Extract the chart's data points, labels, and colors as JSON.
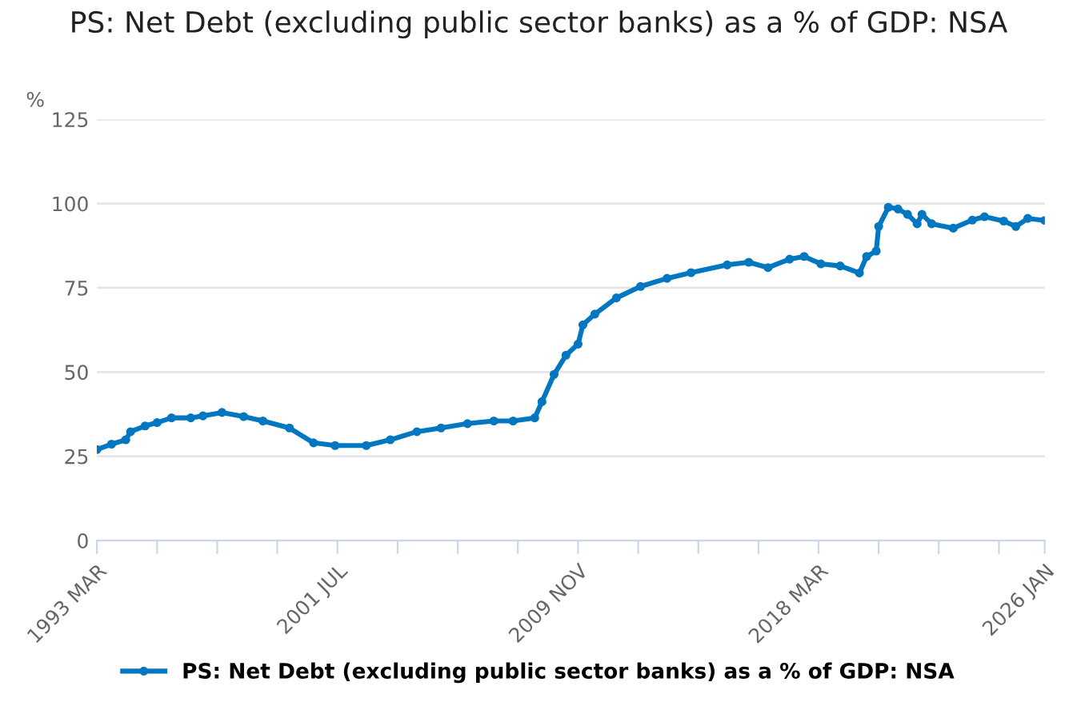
{
  "chart_data": {
    "type": "line",
    "title": "PS: Net Debt (excluding public sector banks) as a % of GDP: NSA",
    "ylabel": "%",
    "x": [
      "1993-03",
      "1993-09",
      "1994-03",
      "1994-05",
      "1994-11",
      "1995-04",
      "1995-10",
      "1996-06",
      "1996-11",
      "1997-07",
      "1998-04",
      "1998-12",
      "1999-11",
      "2000-09",
      "2001-06",
      "2002-07",
      "2003-05",
      "2004-04",
      "2005-02",
      "2006-01",
      "2006-12",
      "2007-08",
      "2008-05",
      "2008-08",
      "2009-01",
      "2009-06",
      "2009-11",
      "2010-01",
      "2010-06",
      "2011-03",
      "2012-01",
      "2012-12",
      "2013-10",
      "2015-01",
      "2015-10",
      "2016-06",
      "2017-03",
      "2017-09",
      "2018-04",
      "2018-12",
      "2019-08",
      "2019-11",
      "2020-03",
      "2020-04",
      "2020-08",
      "2020-12",
      "2021-04",
      "2021-08",
      "2021-10",
      "2022-02",
      "2022-11",
      "2023-07",
      "2023-12",
      "2024-08",
      "2025-01",
      "2025-06",
      "2026-01"
    ],
    "series": [
      {
        "name": "PS: Net Debt (excluding public sector banks) as a % of GDP: NSA",
        "color": "#0077c0",
        "values": [
          27,
          28.6,
          29.9,
          32.3,
          34,
          35,
          36.4,
          36.4,
          37,
          38,
          36.8,
          35.5,
          33.4,
          29,
          28.2,
          28.2,
          29.9,
          32.3,
          33.4,
          34.7,
          35.5,
          35.5,
          36.4,
          41.2,
          49.3,
          55,
          58.3,
          64,
          67.2,
          72,
          75.4,
          77.8,
          79.5,
          81.8,
          82.6,
          81,
          83.5,
          84.3,
          82.1,
          81.5,
          79.4,
          84.3,
          85.9,
          93.2,
          98.9,
          98.4,
          96.8,
          94,
          96.8,
          94,
          92.7,
          95.1,
          96.1,
          94.8,
          93.2,
          95.6,
          95
        ]
      }
    ],
    "xlim": [
      "1993-03",
      "2026-01"
    ],
    "xticks": [
      {
        "value": "1993-03",
        "label": "1993 MAR"
      },
      {
        "value": "1995-04",
        "label": null
      },
      {
        "value": "1997-05",
        "label": null
      },
      {
        "value": "1999-06",
        "label": null
      },
      {
        "value": "2001-07",
        "label": "2001 JUL"
      },
      {
        "value": "2003-08",
        "label": null
      },
      {
        "value": "2005-09",
        "label": null
      },
      {
        "value": "2007-10",
        "label": null
      },
      {
        "value": "2009-11",
        "label": "2009 NOV"
      },
      {
        "value": "2011-12",
        "label": null
      },
      {
        "value": "2014-01",
        "label": null
      },
      {
        "value": "2016-02",
        "label": null
      },
      {
        "value": "2018-03",
        "label": "2018 MAR"
      },
      {
        "value": "2020-04",
        "label": null
      },
      {
        "value": "2022-05",
        "label": null
      },
      {
        "value": "2024-06",
        "label": null
      },
      {
        "value": "2026-01",
        "label": "2026 JAN"
      }
    ],
    "ylim": [
      0,
      125
    ],
    "yticks": [
      0,
      25,
      50,
      75,
      100,
      125
    ],
    "grid": "y",
    "legend": "bottom",
    "marker": "circle",
    "line_style": "solid"
  }
}
